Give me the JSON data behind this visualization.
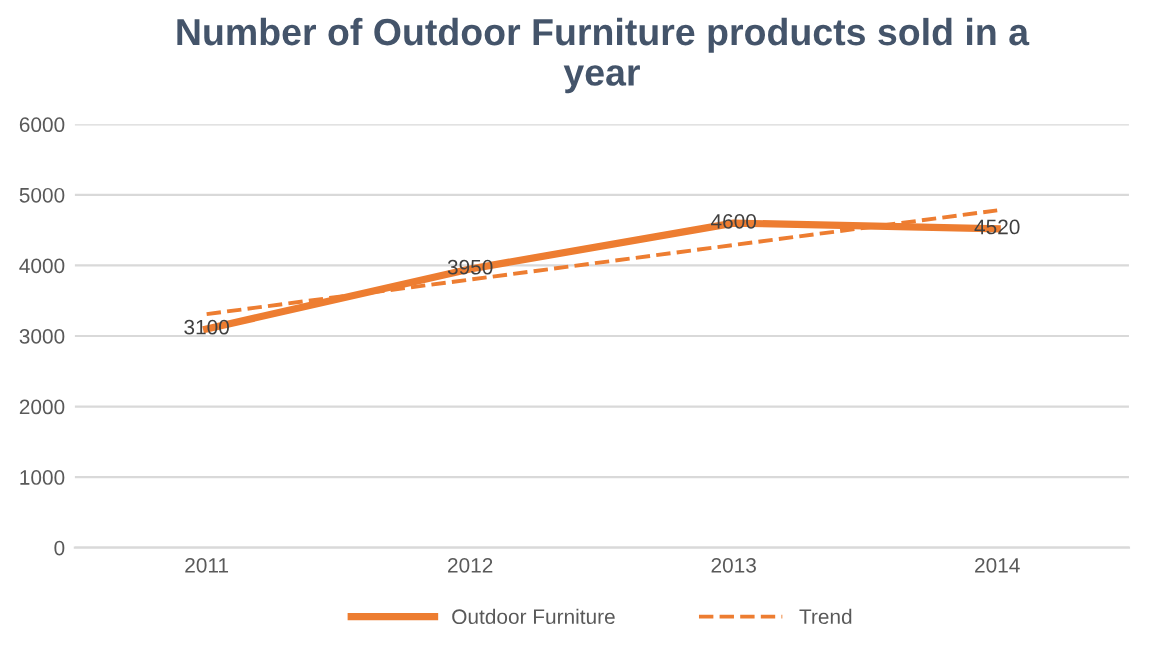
{
  "chart_data": {
    "type": "line",
    "title": "Number of Outdoor Furniture products sold in a\nyear",
    "categories": [
      "2011",
      "2012",
      "2013",
      "2014"
    ],
    "series": [
      {
        "name": "Outdoor Furniture",
        "color": "#ed7d31",
        "values": [
          3100,
          3950,
          4600,
          4520
        ],
        "value_labels": [
          "3100",
          "3950",
          "4600",
          "4520"
        ],
        "line_style": "solid"
      },
      {
        "name": "Trend",
        "color": "#ed7d31",
        "values": [
          3310,
          3800,
          4290,
          4780
        ],
        "line_style": "dashed"
      }
    ],
    "ylim": [
      0,
      6000
    ],
    "yticks": [
      0,
      1000,
      2000,
      3000,
      4000,
      5000,
      6000
    ],
    "grid": "y",
    "legend": "bottom"
  }
}
